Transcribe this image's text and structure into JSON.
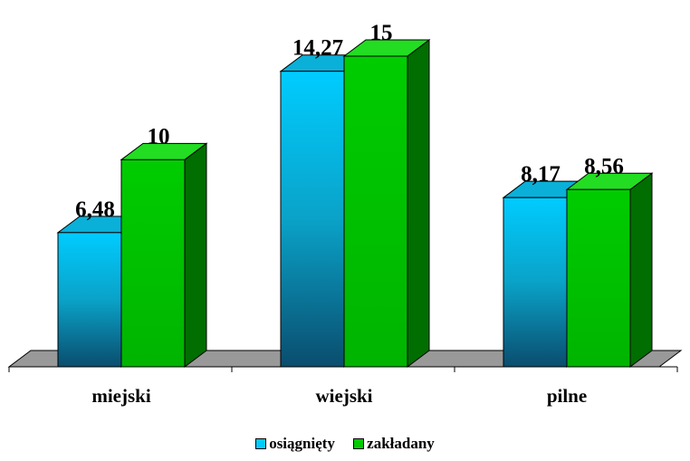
{
  "chart_data": {
    "type": "bar",
    "categories": [
      "miejski",
      "wiejski",
      "pilne"
    ],
    "series": [
      {
        "name": "osiągnięty",
        "values": [
          6.48,
          14.27,
          8.17
        ],
        "labels": [
          "6,48",
          "14,27",
          "8,17"
        ],
        "color": "#00ccff"
      },
      {
        "name": "zakładany",
        "values": [
          10,
          15,
          8.56
        ],
        "labels": [
          "10",
          "15",
          "8,56"
        ],
        "color": "#00cc00"
      }
    ],
    "ylim": [
      0,
      15
    ],
    "grid": false,
    "legend_position": "bottom"
  }
}
